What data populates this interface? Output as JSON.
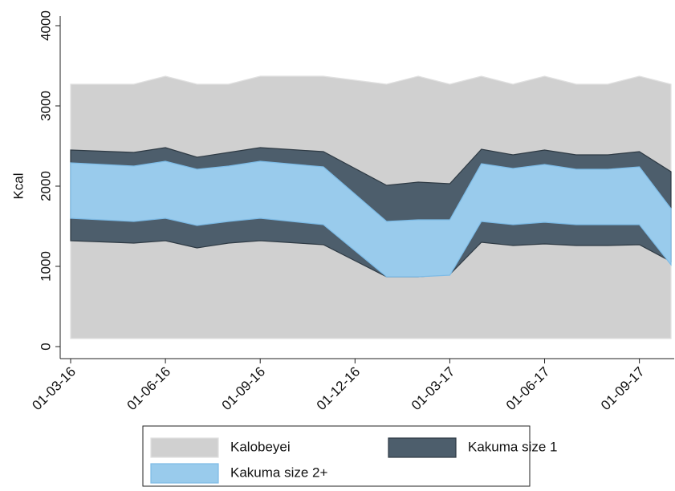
{
  "chart_data": {
    "type": "range-area",
    "y_label": "Kcal",
    "x": [
      "01-03-16",
      null,
      null,
      "01-06-16",
      null,
      null,
      "01-09-16",
      null,
      null,
      "01-12-16",
      null,
      null,
      "01-03-17",
      null,
      null,
      "01-06-17",
      null,
      null,
      "01-09-17",
      null
    ],
    "ylim": [
      0,
      4000
    ],
    "yticks": [
      0,
      1000,
      2000,
      3000,
      4000
    ],
    "series": [
      {
        "name": "Kalobeyei",
        "color": "#d0d0d0",
        "edge": "#e0e0e0",
        "lower": [
          100,
          100,
          100,
          100,
          100,
          100,
          100,
          100,
          100,
          100,
          100,
          100,
          100,
          100,
          100,
          100,
          100,
          100,
          100,
          100
        ],
        "upper": [
          3270,
          3270,
          3270,
          3370,
          3270,
          3270,
          3370,
          3370,
          3370,
          3320,
          3270,
          3370,
          3270,
          3370,
          3270,
          3370,
          3270,
          3270,
          3370,
          3270
        ]
      },
      {
        "name": "Kakuma size 1",
        "color": "#4d5e6c",
        "edge": "#2e3a44",
        "lower": [
          1320,
          1305,
          1290,
          1320,
          1230,
          1290,
          1320,
          1295,
          1270,
          1070,
          870,
          870,
          900,
          1300,
          1260,
          1280,
          1260,
          1260,
          1270,
          1060
        ],
        "upper": [
          2450,
          2435,
          2420,
          2480,
          2360,
          2420,
          2480,
          2455,
          2430,
          2220,
          2010,
          2050,
          2030,
          2460,
          2390,
          2450,
          2390,
          2390,
          2430,
          2180
        ]
      },
      {
        "name": "Kakuma size 2+",
        "color": "#99cbec",
        "edge": "#7dbbe6",
        "lower": [
          1600,
          1580,
          1560,
          1600,
          1510,
          1560,
          1600,
          1560,
          1520,
          1195,
          870,
          870,
          890,
          1560,
          1520,
          1550,
          1520,
          1520,
          1520,
          1020
        ],
        "upper": [
          2290,
          2270,
          2250,
          2310,
          2210,
          2250,
          2310,
          2275,
          2240,
          1900,
          1560,
          1580,
          1580,
          2280,
          2220,
          2270,
          2210,
          2210,
          2240,
          1720
        ]
      }
    ]
  }
}
